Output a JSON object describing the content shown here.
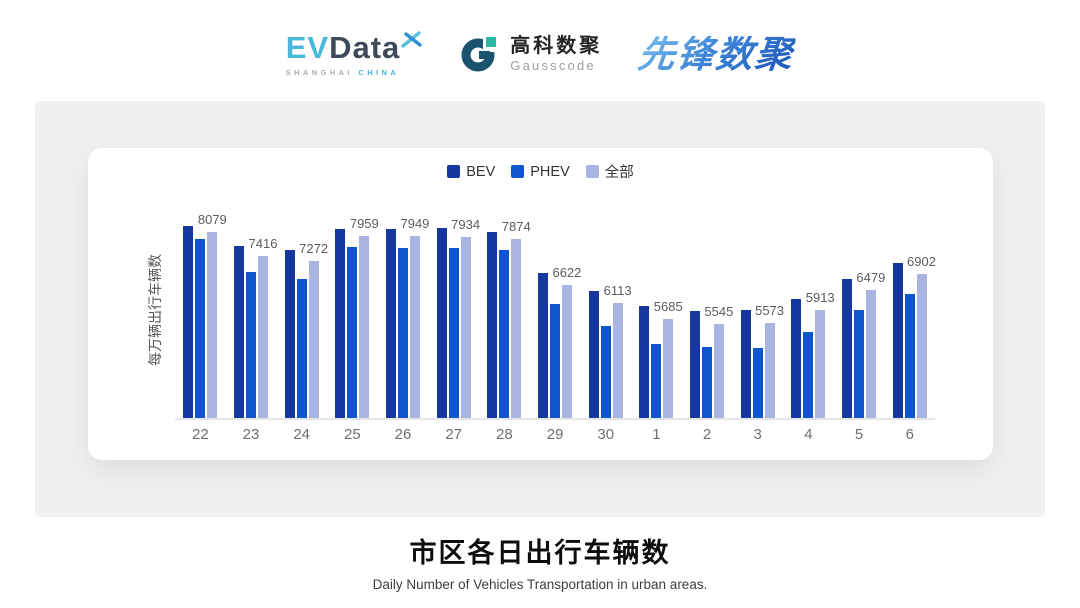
{
  "header": {
    "evdata": {
      "ev": "EV",
      "data": "Data",
      "sub_left": "SHANGHAI",
      "sub_right": "CHINA"
    },
    "gausscode": {
      "name_cn": "高科数聚",
      "name_en": "Gausscode"
    },
    "xianfeng": {
      "name": "先锋数聚"
    }
  },
  "chart_data": {
    "type": "bar",
    "title": "市区各日出行车辆数",
    "subtitle": "Daily Number of Vehicles Transportation in urban areas.",
    "ylabel": "每万辆出行车辆数",
    "xlabel": "",
    "categories": [
      "22",
      "23",
      "24",
      "25",
      "26",
      "27",
      "28",
      "29",
      "30",
      "1",
      "2",
      "3",
      "4",
      "5",
      "6"
    ],
    "series": [
      {
        "name": "BEV",
        "color": "#16379E",
        "values": [
          8240,
          7695,
          7575,
          8165,
          8150,
          8175,
          8080,
          6930,
          6445,
          6035,
          5890,
          5915,
          6215,
          6785,
          7210
        ]
      },
      {
        "name": "PHEV",
        "color": "#0F55CE",
        "values": [
          7880,
          6975,
          6775,
          7650,
          7640,
          7620,
          7575,
          6085,
          5475,
          4995,
          4905,
          4875,
          5310,
          5910,
          6360
        ]
      },
      {
        "name": "全部",
        "color": "#A9B5E0",
        "values": [
          8079,
          7416,
          7272,
          7959,
          7949,
          7934,
          7874,
          6622,
          6113,
          5685,
          5545,
          5573,
          5913,
          6479,
          6902
        ]
      }
    ],
    "data_labels": [
      8079,
      7416,
      7272,
      7959,
      7949,
      7934,
      7874,
      6622,
      6113,
      5685,
      5545,
      5573,
      5913,
      6479,
      6902
    ],
    "labeled_series": "全部",
    "ylim": [
      2950,
      8620
    ],
    "grid": false,
    "legend_position": "top"
  },
  "footer": {
    "title": "市区各日出行车辆数",
    "subtitle": "Daily Number of Vehicles Transportation in urban areas."
  }
}
